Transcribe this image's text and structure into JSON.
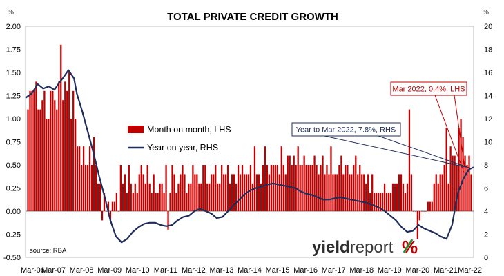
{
  "chart_data": {
    "type": "bar",
    "title": "TOTAL PRIVATE CREDIT GROWTH",
    "left_unit": "%",
    "right_unit": "%",
    "left_ylim": [
      -0.5,
      2.0
    ],
    "right_ylim": [
      0,
      20
    ],
    "left_ticks": [
      "2.00",
      "1.75",
      "1.50",
      "1.25",
      "1.00",
      "0.75",
      "0.50",
      "0.25",
      "0.00",
      "-0.25",
      "-0.50"
    ],
    "right_ticks": [
      "20",
      "18",
      "16",
      "14",
      "12",
      "10",
      "8",
      "6",
      "4",
      "2",
      "0"
    ],
    "x_ticks": [
      "Mar-06",
      "Mar-07",
      "Mar-08",
      "Mar-09",
      "Mar-10",
      "Mar-11",
      "Mar-12",
      "Mar-13",
      "Mar-14",
      "Mar-15",
      "Mar-16",
      "Mar-17",
      "Mar-18",
      "Mar-19",
      "Mar-20",
      "Mar-21",
      "Mar-22"
    ],
    "x_start": "Mar-06",
    "x_end": "Mar-22",
    "grid": false,
    "legend_position": "middle-left",
    "series": [
      {
        "name": "Month on month, LHS",
        "type": "bar",
        "axis": "left",
        "color": "#c00000",
        "values": [
          1.1,
          1.3,
          1.3,
          1.3,
          1.4,
          1.1,
          1.1,
          1.2,
          1.3,
          1.0,
          1.0,
          1.3,
          1.3,
          1.2,
          1.1,
          1.4,
          1.8,
          1.2,
          1.4,
          1.3,
          1.5,
          1.0,
          1.3,
          1.0,
          0.7,
          0.7,
          0.5,
          0.7,
          0.5,
          0.5,
          0.7,
          0.5,
          0.8,
          0.5,
          0.3,
          0.3,
          -0.1,
          0.2,
          0.0,
          0.1,
          -0.1,
          0.1,
          0.1,
          0.2,
          0.0,
          0.5,
          0.3,
          0.4,
          0.2,
          0.5,
          0.3,
          0.2,
          0.3,
          0.2,
          0.4,
          0.5,
          0.4,
          0.3,
          0.5,
          0.3,
          0.2,
          0.4,
          0.2,
          0.2,
          0.3,
          0.3,
          0.2,
          0.5,
          -0.2,
          0.2,
          0.5,
          0.4,
          0.2,
          0.3,
          0.4,
          0.5,
          0.4,
          0.2,
          0.3,
          0.3,
          0.5,
          0.4,
          0.4,
          0.3,
          0.3,
          0.5,
          0.5,
          0.3,
          0.3,
          0.4,
          0.4,
          0.5,
          0.3,
          0.3,
          0.5,
          0.4,
          0.4,
          0.5,
          0.3,
          0.4,
          0.4,
          0.3,
          0.5,
          0.4,
          0.5,
          0.4,
          0.4,
          0.4,
          0.5,
          0.3,
          0.7,
          0.4,
          0.4,
          0.3,
          0.5,
          0.7,
          0.5,
          0.4,
          0.5,
          0.5,
          0.5,
          0.5,
          0.4,
          0.7,
          0.5,
          0.4,
          0.6,
          0.6,
          0.5,
          0.6,
          0.5,
          0.7,
          0.5,
          0.5,
          0.6,
          0.5,
          0.5,
          0.5,
          0.5,
          0.6,
          0.5,
          0.4,
          0.5,
          0.6,
          0.4,
          0.5,
          0.4,
          0.7,
          0.4,
          0.4,
          0.4,
          0.5,
          0.6,
          0.4,
          0.5,
          0.5,
          0.4,
          0.4,
          0.5,
          0.6,
          0.4,
          0.5,
          0.4,
          0.4,
          0.3,
          0.4,
          0.2,
          0.4,
          0.2,
          0.2,
          0.2,
          0.2,
          0.2,
          0.3,
          0.2,
          0.2,
          0.2,
          0.3,
          0.3,
          0.3,
          0.4,
          0.4,
          0.3,
          0.2,
          0.3,
          1.1,
          0.4,
          0.0,
          0.0,
          -0.3,
          -0.1,
          0.0,
          0.0,
          0.0,
          0.1,
          0.1,
          0.1,
          0.3,
          0.4,
          0.3,
          0.4,
          0.4,
          0.5,
          0.9,
          0.3,
          0.7,
          0.6,
          0.6,
          0.5,
          0.9,
          1.0,
          0.8,
          0.6,
          0.5,
          0.6,
          0.4
        ]
      },
      {
        "name": "Year on year, RHS",
        "type": "line",
        "axis": "right",
        "color": "#1f2d5a",
        "x": [
          2006.17,
          2006.4,
          2006.6,
          2006.8,
          2007.0,
          2007.2,
          2007.4,
          2007.5,
          2007.7,
          2007.9,
          2008.0,
          2008.2,
          2008.4,
          2008.6,
          2008.8,
          2009.0,
          2009.2,
          2009.4,
          2009.6,
          2009.8,
          2010.0,
          2010.2,
          2010.4,
          2010.6,
          2010.8,
          2011.0,
          2011.2,
          2011.4,
          2011.6,
          2011.8,
          2012.0,
          2012.2,
          2012.4,
          2012.6,
          2012.8,
          2013.0,
          2013.2,
          2013.4,
          2013.6,
          2013.8,
          2014.0,
          2014.2,
          2014.4,
          2014.6,
          2014.8,
          2015.0,
          2015.2,
          2015.4,
          2015.6,
          2015.8,
          2016.0,
          2016.2,
          2016.4,
          2016.6,
          2016.8,
          2017.0,
          2017.2,
          2017.4,
          2017.6,
          2017.8,
          2018.0,
          2018.2,
          2018.4,
          2018.6,
          2018.8,
          2019.0,
          2019.2,
          2019.4,
          2019.6,
          2019.8,
          2020.0,
          2020.2,
          2020.4,
          2020.6,
          2020.8,
          2021.0,
          2021.2,
          2021.4,
          2021.6,
          2021.8,
          2022.0,
          2022.17
        ],
        "values": [
          13.8,
          14.2,
          15.0,
          14.6,
          14.8,
          14.5,
          15.2,
          15.5,
          16.2,
          15.5,
          14.2,
          12.6,
          10.8,
          9.0,
          7.0,
          5.2,
          3.2,
          1.8,
          1.3,
          1.6,
          2.2,
          2.6,
          2.9,
          3.0,
          3.0,
          2.8,
          2.7,
          2.8,
          3.2,
          3.5,
          3.6,
          4.0,
          4.2,
          4.0,
          3.8,
          3.4,
          3.5,
          4.0,
          4.5,
          5.0,
          5.5,
          5.8,
          6.0,
          6.1,
          6.3,
          6.4,
          6.3,
          6.2,
          6.1,
          6.0,
          5.7,
          5.5,
          5.4,
          5.2,
          5.0,
          5.0,
          5.1,
          5.2,
          5.1,
          5.0,
          4.9,
          4.8,
          4.7,
          4.5,
          4.3,
          4.0,
          3.6,
          3.2,
          2.6,
          2.2,
          2.3,
          2.8,
          2.5,
          2.3,
          2.1,
          1.8,
          1.6,
          2.8,
          5.5,
          6.8,
          7.6,
          7.8
        ]
      }
    ],
    "annotations": [
      {
        "text": "Mar 2022, 0.4%, LHS",
        "color": "#c00000"
      },
      {
        "text": "Year to Mar 2022, 7.8%, RHS",
        "color": "#1f2d5a"
      }
    ],
    "source": "source: RBA"
  },
  "brand": {
    "name_bold": "yield",
    "name_light": "report",
    "symbol": "%",
    "symbol_colors": [
      "#c00000",
      "#2e8b3a"
    ]
  }
}
